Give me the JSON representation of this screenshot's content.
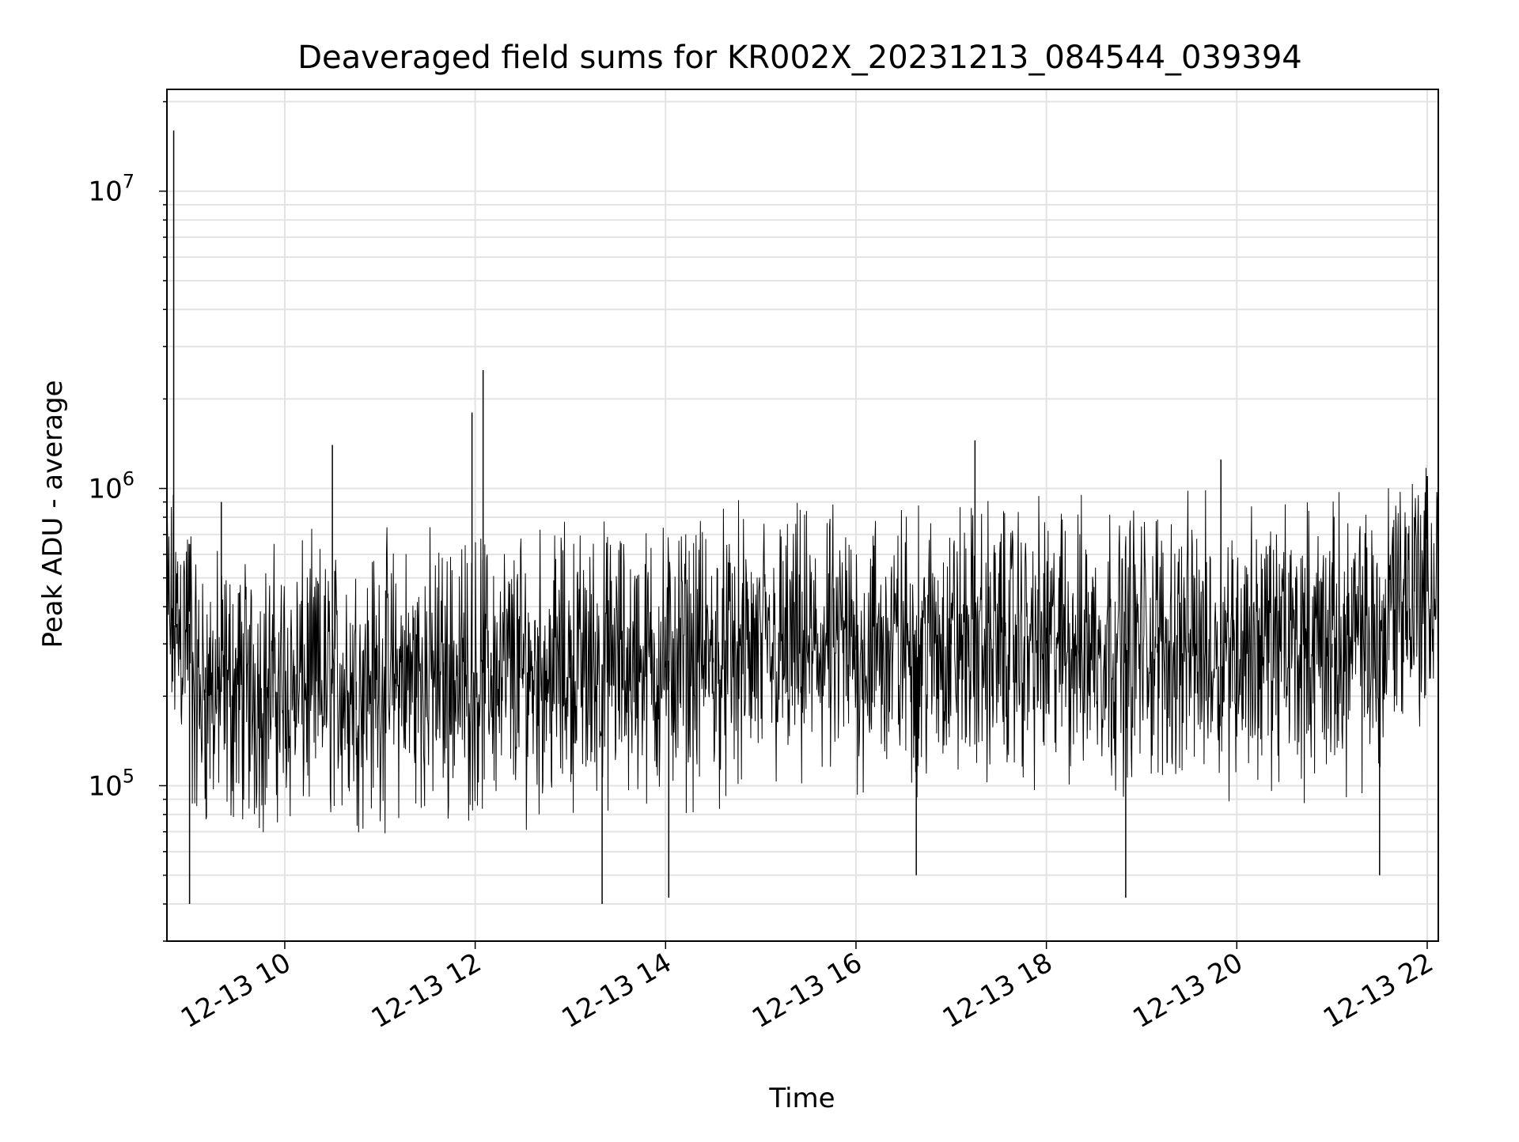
{
  "chart_data": {
    "type": "line",
    "title": "Deaveraged field sums for KR002X_20231213_084544_039394",
    "xlabel": "Time",
    "ylabel": "Peak ADU - average",
    "x_axis": {
      "kind": "datetime",
      "range": [
        "2023-12-13T08:45:44",
        "2023-12-13T22:07:00"
      ],
      "tick_values": [
        "2023-12-13T10:00",
        "2023-12-13T12:00",
        "2023-12-13T14:00",
        "2023-12-13T16:00",
        "2023-12-13T18:00",
        "2023-12-13T20:00",
        "2023-12-13T22:00"
      ],
      "tick_labels": [
        "12-13 10",
        "12-13 12",
        "12-13 14",
        "12-13 16",
        "12-13 18",
        "12-13 20",
        "12-13 22"
      ],
      "tick_label_rotation": 30
    },
    "y_axis": {
      "scale": "log",
      "range": [
        30000,
        22000000
      ],
      "tick_values": [
        100000,
        1000000,
        10000000
      ],
      "tick_labels": [
        {
          "base": "10",
          "exp": "5"
        },
        {
          "base": "10",
          "exp": "6"
        },
        {
          "base": "10",
          "exp": "7"
        }
      ]
    },
    "grid": true,
    "line_color": "#000000",
    "series": [
      {
        "x": [
          "2023-12-13T08:45:44",
          "2023-12-13T08:50",
          "2023-12-13T08:52",
          "2023-12-13T09:00",
          "2023-12-13T09:10",
          "2023-12-13T09:20",
          "2023-12-13T09:45",
          "2023-12-13T10:15",
          "2023-12-13T10:30",
          "2023-12-13T10:45",
          "2023-12-13T11:10",
          "2023-12-13T11:40",
          "2023-12-13T11:58",
          "2023-12-13T12:05",
          "2023-12-13T12:10",
          "2023-12-13T12:30",
          "2023-12-13T13:00",
          "2023-12-13T13:20",
          "2023-12-13T13:40",
          "2023-12-13T14:00",
          "2023-12-13T14:02",
          "2023-12-13T14:30",
          "2023-12-13T15:00",
          "2023-12-13T15:30",
          "2023-12-13T16:00",
          "2023-12-13T16:38",
          "2023-12-13T17:00",
          "2023-12-13T17:15",
          "2023-12-13T17:30",
          "2023-12-13T18:00",
          "2023-12-13T18:30",
          "2023-12-13T18:50",
          "2023-12-13T19:10",
          "2023-12-13T19:40",
          "2023-12-13T19:50",
          "2023-12-13T20:30",
          "2023-12-13T21:00",
          "2023-12-13T21:30",
          "2023-12-13T21:45",
          "2023-12-13T21:52",
          "2023-12-13T22:00",
          "2023-12-13T22:07"
        ],
        "y": [
          400000,
          16000000,
          300000,
          40000,
          250000,
          900000,
          200000,
          200000,
          1400000,
          180000,
          220000,
          260000,
          1800000,
          2500000,
          280000,
          220000,
          230000,
          40000,
          240000,
          250000,
          42000,
          260000,
          280000,
          300000,
          320000,
          50000,
          350000,
          1450000,
          330000,
          340000,
          300000,
          42000,
          280000,
          300000,
          1250000,
          270000,
          250000,
          50000,
          260000,
          800000,
          1100000,
          500000
        ]
      }
    ]
  }
}
